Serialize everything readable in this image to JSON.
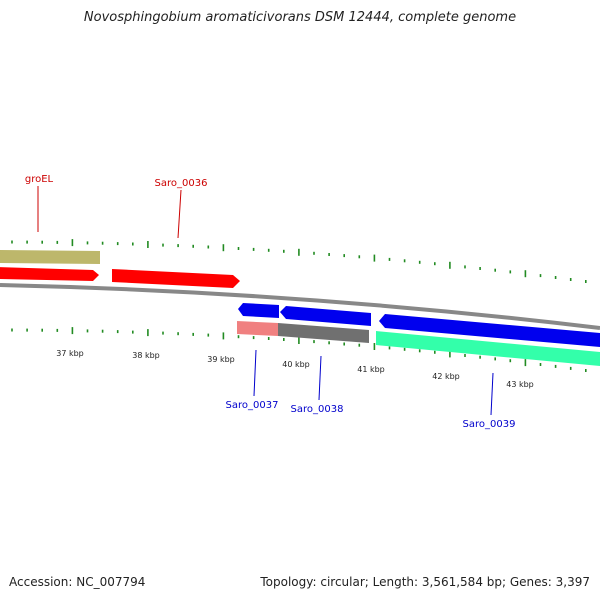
{
  "title": "Novosphingobium aromaticivorans DSM 12444, complete genome",
  "footer": {
    "accession": "Accession: NC_007794",
    "summary": "Topology: circular; Length: 3,561,584 bp; Genes: 3,397"
  },
  "scale_labels": [
    "37 kbp",
    "38 kbp",
    "39 kbp",
    "40 kbp",
    "41 kbp",
    "42 kbp",
    "43 kbp"
  ],
  "genes_forward": [
    {
      "name": "groEL",
      "color": "#bdb76b"
    },
    {
      "name": "Saro_0036",
      "color": "#ff0000"
    }
  ],
  "genes_reverse": [
    {
      "name": "Saro_0037",
      "color": "#0000ee"
    },
    {
      "name": "Saro_0038",
      "color": "#0000ee"
    },
    {
      "name": "Saro_0039",
      "color": "#0000ee"
    }
  ],
  "colors": {
    "forward_label": "#cc0000",
    "reverse_label": "#0000cc",
    "tick": "#228b22",
    "backbone": "#888888",
    "feature_red": "#ff0000",
    "feature_khaki": "#bdb76b",
    "feature_blue": "#0000ee",
    "feature_pink": "#f08080",
    "feature_gray": "#707070",
    "feature_green": "#33ffaa"
  }
}
